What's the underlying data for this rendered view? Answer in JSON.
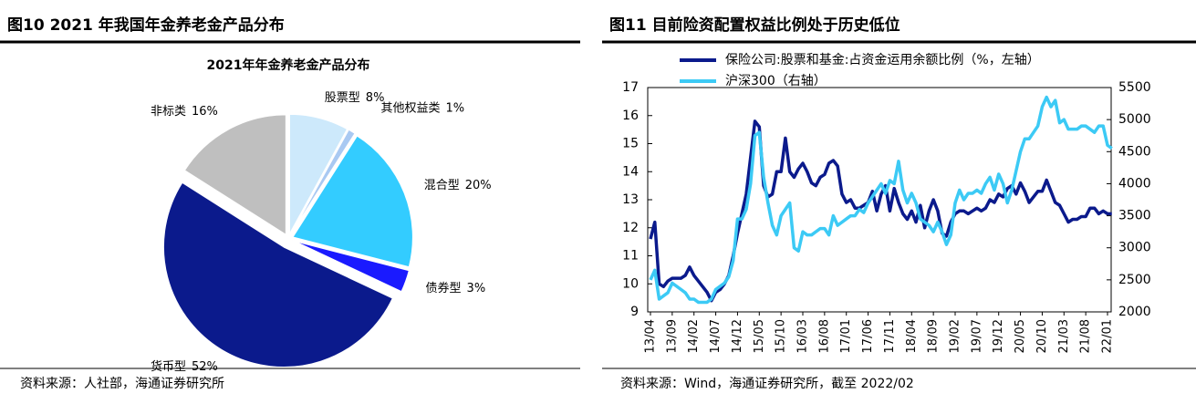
{
  "figures": [
    {
      "header": "图10 2021 年我国年金养老金产品分布",
      "source": "资料来源：人社部，海通证券研究所"
    },
    {
      "header": "图11 目前险资配置权益比例处于历史低位",
      "source": "资料来源：Wind，海通证券研究所，截至 2022/02"
    }
  ],
  "chart_data": [
    {
      "type": "pie",
      "title": "2021年年金养老金产品分布",
      "categories": [
        "股票型",
        "其他权益类",
        "混合型",
        "债券型",
        "货币型",
        "非标类"
      ],
      "values": [
        8,
        1,
        20,
        3,
        52,
        16
      ],
      "value_labels": [
        "8%",
        "1%",
        "20%",
        "3%",
        "52%",
        "16%"
      ],
      "colors": [
        "#cde9fb",
        "#a9c9f2",
        "#33ccff",
        "#1a1aff",
        "#0b1a8c",
        "#bfbfbf"
      ]
    },
    {
      "type": "line",
      "categories": [
        "13/04",
        null,
        null,
        null,
        null,
        "13/09",
        null,
        null,
        null,
        null,
        "14/02",
        null,
        null,
        null,
        null,
        "14/07",
        null,
        null,
        null,
        null,
        "14/12",
        null,
        null,
        null,
        null,
        "15/05",
        null,
        null,
        null,
        null,
        "15/10",
        null,
        null,
        null,
        null,
        "16/03",
        null,
        null,
        null,
        null,
        "16/08",
        null,
        null,
        null,
        null,
        "17/01",
        null,
        null,
        null,
        null,
        "17/06",
        null,
        null,
        null,
        null,
        "17/11",
        null,
        null,
        null,
        null,
        "18/04",
        null,
        null,
        null,
        null,
        "18/09",
        null,
        null,
        null,
        null,
        "19/02",
        null,
        null,
        null,
        null,
        "19/07",
        null,
        null,
        null,
        null,
        "19/12",
        null,
        null,
        null,
        null,
        "20/05",
        null,
        null,
        null,
        null,
        "20/10",
        null,
        null,
        null,
        null,
        "21/03",
        null,
        null,
        null,
        null,
        "21/08",
        null,
        null,
        null,
        null,
        "22/01",
        null
      ],
      "ylim": [
        9,
        17
      ],
      "yticks": [
        9,
        10,
        11,
        12,
        13,
        14,
        15,
        16,
        17
      ],
      "y2lim": [
        2000,
        5500
      ],
      "y2ticks": [
        2000,
        2500,
        3000,
        3500,
        4000,
        4500,
        5000,
        5500
      ],
      "series": [
        {
          "name": "保险公司:股票和基金:占资金运用余额比例（%，左轴）",
          "color": "#0b1a8c",
          "values": [
            11.6,
            12.2,
            10.0,
            9.9,
            10.1,
            10.2,
            10.2,
            10.2,
            10.3,
            10.6,
            10.3,
            10.1,
            9.9,
            9.7,
            9.4,
            9.7,
            9.8,
            10.0,
            10.3,
            11.0,
            11.8,
            12.5,
            13.2,
            14.5,
            15.8,
            15.6,
            13.5,
            13.1,
            13.2,
            14.0,
            14.0,
            15.2,
            14.0,
            13.8,
            14.1,
            14.3,
            14.0,
            13.6,
            13.5,
            13.8,
            13.9,
            14.3,
            14.4,
            14.2,
            13.2,
            12.9,
            13.0,
            12.7,
            12.7,
            12.8,
            12.9,
            13.3,
            12.6,
            13.2,
            13.5,
            12.6,
            13.4,
            12.9,
            12.5,
            12.3,
            12.6,
            12.2,
            12.8,
            12.0,
            12.6,
            13.0,
            12.6,
            11.8,
            11.7,
            12.2,
            12.5,
            12.6,
            12.6,
            12.5,
            12.6,
            12.7,
            12.6,
            12.7,
            13.0,
            12.9,
            13.2,
            13.1,
            13.4,
            13.5,
            13.2,
            13.6,
            13.3,
            12.9,
            13.1,
            13.3,
            13.3,
            13.7,
            13.3,
            12.9,
            12.8,
            12.5,
            12.2,
            12.3,
            12.3,
            12.4,
            12.4,
            12.7,
            12.7,
            12.5,
            12.6,
            12.5,
            12.5
          ]
        },
        {
          "name": "沪深300（右轴）",
          "color": "#3ccaf5",
          "axis": "y2",
          "values": [
            2500,
            2650,
            2200,
            2250,
            2300,
            2450,
            2400,
            2350,
            2300,
            2200,
            2200,
            2150,
            2150,
            2150,
            2200,
            2350,
            2400,
            2450,
            2550,
            2800,
            3450,
            3450,
            3600,
            4000,
            4750,
            4800,
            4100,
            3700,
            3350,
            3200,
            3500,
            3600,
            3700,
            3000,
            2950,
            3250,
            3200,
            3200,
            3250,
            3300,
            3300,
            3200,
            3500,
            3350,
            3400,
            3450,
            3500,
            3500,
            3600,
            3550,
            3700,
            3800,
            3900,
            4000,
            3850,
            4050,
            4000,
            4350,
            3900,
            3700,
            3850,
            3700,
            3450,
            3400,
            3350,
            3250,
            3400,
            3250,
            3050,
            3200,
            3700,
            3900,
            3750,
            3850,
            3850,
            3900,
            3850,
            4000,
            4100,
            3900,
            4150,
            4000,
            3700,
            3900,
            4200,
            4500,
            4700,
            4700,
            4800,
            4900,
            5200,
            5350,
            5200,
            5300,
            4950,
            5000,
            4850,
            4850,
            4850,
            4900,
            4900,
            4850,
            4800,
            4900,
            4900,
            4600,
            4550
          ]
        }
      ]
    }
  ]
}
